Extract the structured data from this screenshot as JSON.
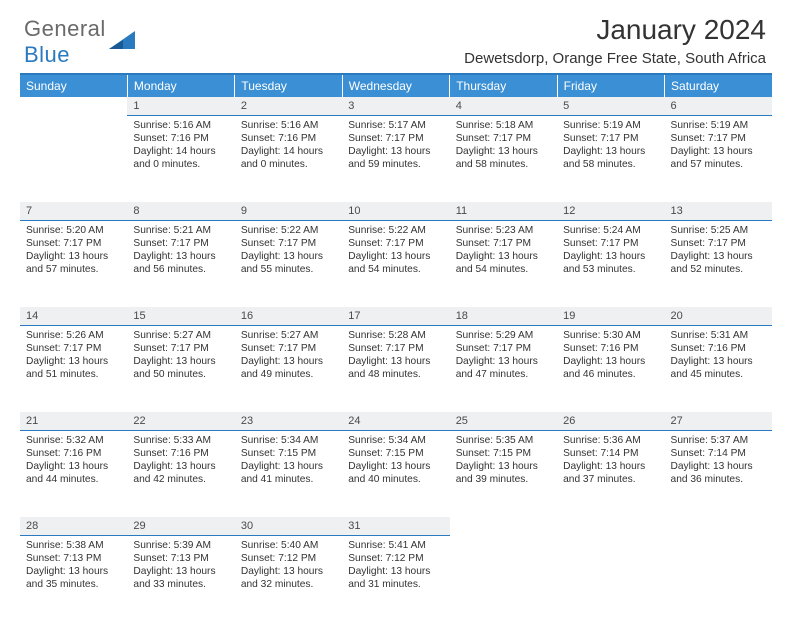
{
  "logo": {
    "text_a": "General",
    "text_b": "Blue"
  },
  "header": {
    "title": "January 2024",
    "location": "Dewetsdorp, Orange Free State, South Africa"
  },
  "colors": {
    "header_bg": "#3b8fd4",
    "header_text": "#ffffff",
    "divider": "#2a7ac0",
    "daynum_bg": "#eef0f1",
    "text": "#333333",
    "logo_gray": "#6a6a6a",
    "logo_blue": "#2a7ac0"
  },
  "days_of_week": [
    "Sunday",
    "Monday",
    "Tuesday",
    "Wednesday",
    "Thursday",
    "Friday",
    "Saturday"
  ],
  "weeks": [
    [
      null,
      {
        "n": "1",
        "sr": "5:16 AM",
        "ss": "7:16 PM",
        "dl": "14 hours and 0 minutes."
      },
      {
        "n": "2",
        "sr": "5:16 AM",
        "ss": "7:16 PM",
        "dl": "14 hours and 0 minutes."
      },
      {
        "n": "3",
        "sr": "5:17 AM",
        "ss": "7:17 PM",
        "dl": "13 hours and 59 minutes."
      },
      {
        "n": "4",
        "sr": "5:18 AM",
        "ss": "7:17 PM",
        "dl": "13 hours and 58 minutes."
      },
      {
        "n": "5",
        "sr": "5:19 AM",
        "ss": "7:17 PM",
        "dl": "13 hours and 58 minutes."
      },
      {
        "n": "6",
        "sr": "5:19 AM",
        "ss": "7:17 PM",
        "dl": "13 hours and 57 minutes."
      }
    ],
    [
      {
        "n": "7",
        "sr": "5:20 AM",
        "ss": "7:17 PM",
        "dl": "13 hours and 57 minutes."
      },
      {
        "n": "8",
        "sr": "5:21 AM",
        "ss": "7:17 PM",
        "dl": "13 hours and 56 minutes."
      },
      {
        "n": "9",
        "sr": "5:22 AM",
        "ss": "7:17 PM",
        "dl": "13 hours and 55 minutes."
      },
      {
        "n": "10",
        "sr": "5:22 AM",
        "ss": "7:17 PM",
        "dl": "13 hours and 54 minutes."
      },
      {
        "n": "11",
        "sr": "5:23 AM",
        "ss": "7:17 PM",
        "dl": "13 hours and 54 minutes."
      },
      {
        "n": "12",
        "sr": "5:24 AM",
        "ss": "7:17 PM",
        "dl": "13 hours and 53 minutes."
      },
      {
        "n": "13",
        "sr": "5:25 AM",
        "ss": "7:17 PM",
        "dl": "13 hours and 52 minutes."
      }
    ],
    [
      {
        "n": "14",
        "sr": "5:26 AM",
        "ss": "7:17 PM",
        "dl": "13 hours and 51 minutes."
      },
      {
        "n": "15",
        "sr": "5:27 AM",
        "ss": "7:17 PM",
        "dl": "13 hours and 50 minutes."
      },
      {
        "n": "16",
        "sr": "5:27 AM",
        "ss": "7:17 PM",
        "dl": "13 hours and 49 minutes."
      },
      {
        "n": "17",
        "sr": "5:28 AM",
        "ss": "7:17 PM",
        "dl": "13 hours and 48 minutes."
      },
      {
        "n": "18",
        "sr": "5:29 AM",
        "ss": "7:17 PM",
        "dl": "13 hours and 47 minutes."
      },
      {
        "n": "19",
        "sr": "5:30 AM",
        "ss": "7:16 PM",
        "dl": "13 hours and 46 minutes."
      },
      {
        "n": "20",
        "sr": "5:31 AM",
        "ss": "7:16 PM",
        "dl": "13 hours and 45 minutes."
      }
    ],
    [
      {
        "n": "21",
        "sr": "5:32 AM",
        "ss": "7:16 PM",
        "dl": "13 hours and 44 minutes."
      },
      {
        "n": "22",
        "sr": "5:33 AM",
        "ss": "7:16 PM",
        "dl": "13 hours and 42 minutes."
      },
      {
        "n": "23",
        "sr": "5:34 AM",
        "ss": "7:15 PM",
        "dl": "13 hours and 41 minutes."
      },
      {
        "n": "24",
        "sr": "5:34 AM",
        "ss": "7:15 PM",
        "dl": "13 hours and 40 minutes."
      },
      {
        "n": "25",
        "sr": "5:35 AM",
        "ss": "7:15 PM",
        "dl": "13 hours and 39 minutes."
      },
      {
        "n": "26",
        "sr": "5:36 AM",
        "ss": "7:14 PM",
        "dl": "13 hours and 37 minutes."
      },
      {
        "n": "27",
        "sr": "5:37 AM",
        "ss": "7:14 PM",
        "dl": "13 hours and 36 minutes."
      }
    ],
    [
      {
        "n": "28",
        "sr": "5:38 AM",
        "ss": "7:13 PM",
        "dl": "13 hours and 35 minutes."
      },
      {
        "n": "29",
        "sr": "5:39 AM",
        "ss": "7:13 PM",
        "dl": "13 hours and 33 minutes."
      },
      {
        "n": "30",
        "sr": "5:40 AM",
        "ss": "7:12 PM",
        "dl": "13 hours and 32 minutes."
      },
      {
        "n": "31",
        "sr": "5:41 AM",
        "ss": "7:12 PM",
        "dl": "13 hours and 31 minutes."
      },
      null,
      null,
      null
    ]
  ],
  "labels": {
    "sunrise": "Sunrise:",
    "sunset": "Sunset:",
    "daylight": "Daylight:"
  }
}
